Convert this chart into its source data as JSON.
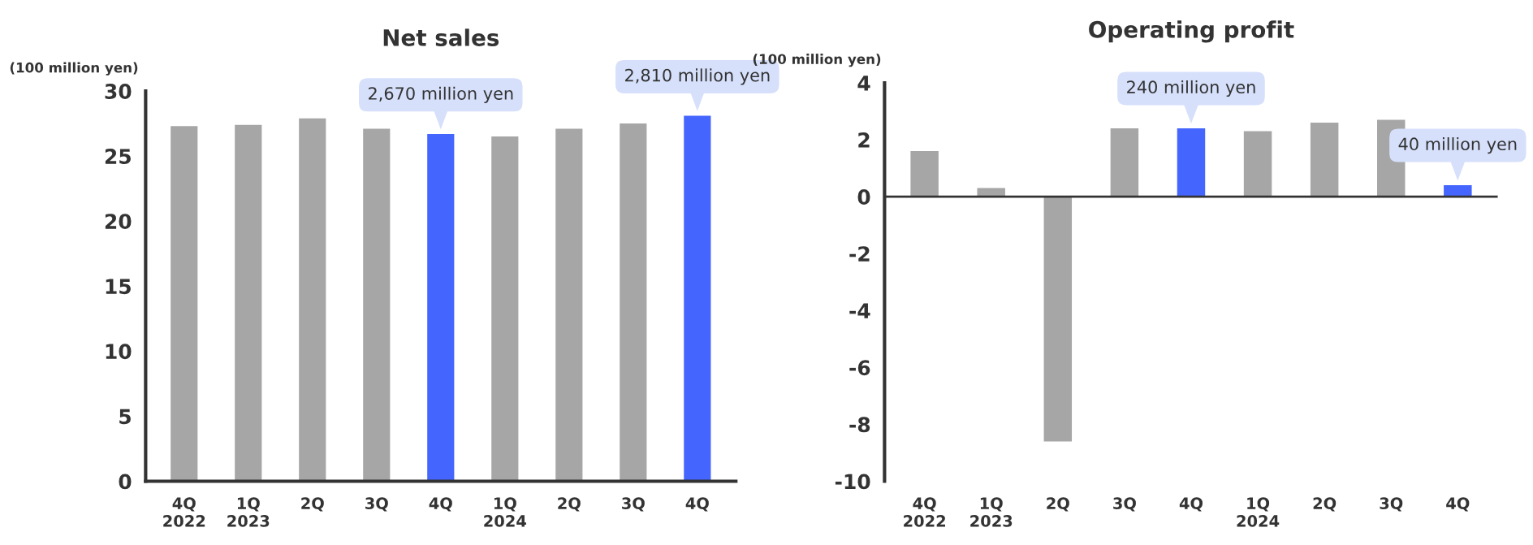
{
  "chart_data": [
    {
      "type": "bar",
      "title": "Net sales",
      "ylabel": "(100 million yen)",
      "categories": [
        "4Q\n2022",
        "1Q\n2023",
        "2Q",
        "3Q",
        "4Q",
        "1Q\n2024",
        "2Q",
        "3Q",
        "4Q"
      ],
      "values": [
        27.3,
        27.4,
        27.9,
        27.1,
        26.7,
        26.5,
        27.1,
        27.5,
        28.1
      ],
      "colors": [
        "#a6a6a6",
        "#a6a6a6",
        "#a6a6a6",
        "#a6a6a6",
        "#4466ff",
        "#a6a6a6",
        "#a6a6a6",
        "#a6a6a6",
        "#4466ff"
      ],
      "ylim": [
        0,
        30
      ],
      "yticks": [
        0,
        5,
        10,
        15,
        20,
        25,
        30
      ],
      "grid": false,
      "legend": false,
      "annotations": [
        "2,670 million yen",
        "2,810 million yen"
      ]
    },
    {
      "type": "bar",
      "title": "Operating profit",
      "ylabel": "(100 million yen)",
      "categories": [
        "4Q\n2022",
        "1Q\n2023",
        "2Q",
        "3Q",
        "4Q",
        "1Q\n2024",
        "2Q",
        "3Q",
        "4Q"
      ],
      "values": [
        1.6,
        0.3,
        -8.6,
        2.4,
        2.4,
        2.3,
        2.6,
        2.7,
        0.4
      ],
      "colors": [
        "#a6a6a6",
        "#a6a6a6",
        "#a6a6a6",
        "#a6a6a6",
        "#4466ff",
        "#a6a6a6",
        "#a6a6a6",
        "#a6a6a6",
        "#4466ff"
      ],
      "ylim": [
        -10,
        4
      ],
      "yticks": [
        -10,
        -8,
        -6,
        -4,
        -2,
        0,
        2,
        4
      ],
      "grid": false,
      "legend": false,
      "ref_lines": [
        {
          "axis": "y",
          "value": 0,
          "color": "#333333"
        }
      ],
      "annotations": [
        "240 million yen",
        "40 million yen"
      ]
    }
  ]
}
